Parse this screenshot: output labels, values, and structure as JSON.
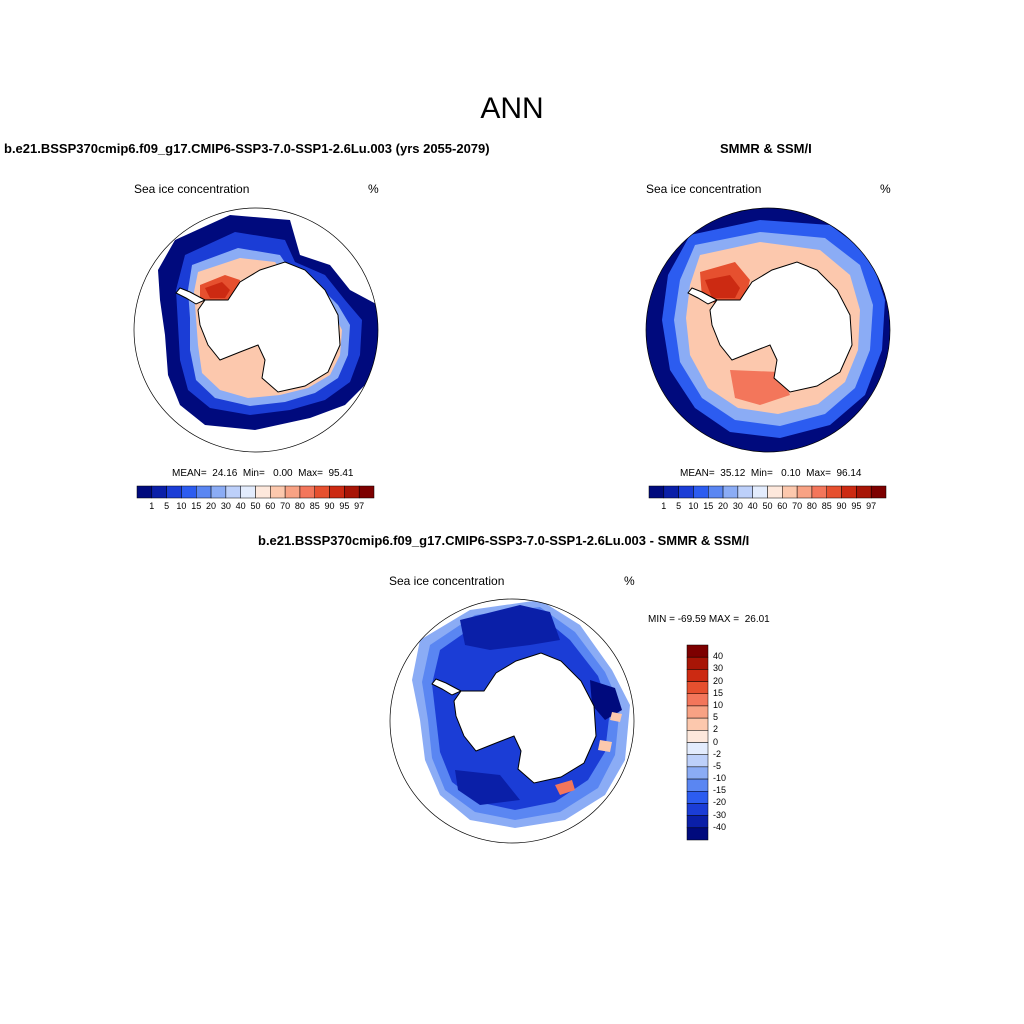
{
  "figure": {
    "title": "ANN"
  },
  "panels": {
    "left": {
      "title": "b.e21.BSSP370cmip6.f09_g17.CMIP6-SSP3-7.0-SSP1-2.6Lu.003 (yrs 2055-2079)",
      "variable": "Sea ice concentration",
      "units": "%",
      "stats": "MEAN=  24.16  Min=   0.00  Max=  95.41"
    },
    "right": {
      "title": "SMMR & SSM/I",
      "variable": "Sea ice concentration",
      "units": "%",
      "stats": "MEAN=  35.12  Min=   0.10  Max=  96.14"
    },
    "diff": {
      "title": "b.e21.BSSP370cmip6.f09_g17.CMIP6-SSP3-7.0-SSP1-2.6Lu.003 - SMMR & SSM/I",
      "variable": "Sea ice concentration",
      "units": "%",
      "stats": "MIN = -69.59 MAX =  26.01"
    }
  },
  "colorbars": {
    "concentration": {
      "labels": [
        "1",
        "5",
        "10",
        "15",
        "20",
        "30",
        "40",
        "50",
        "60",
        "70",
        "80",
        "85",
        "90",
        "95",
        "97"
      ],
      "colors": [
        "#000a7d",
        "#0a1fa8",
        "#1b3dd6",
        "#2c5cf0",
        "#5a86f2",
        "#8bacf5",
        "#bdd0fa",
        "#e3ecfd",
        "#fde8dc",
        "#fcc8ad",
        "#f8a284",
        "#f3765b",
        "#e6502f",
        "#cc2a12",
        "#a81506",
        "#7d0000"
      ]
    },
    "difference": {
      "labels": [
        "40",
        "30",
        "20",
        "15",
        "10",
        "5",
        "2",
        "0",
        "-2",
        "-5",
        "-10",
        "-15",
        "-20",
        "-30",
        "-40"
      ],
      "colors": [
        "#7d0000",
        "#a81506",
        "#cc2a12",
        "#e6502f",
        "#f3765b",
        "#f8a284",
        "#fcc8ad",
        "#fde8dc",
        "#e3ecfd",
        "#bdd0fa",
        "#8bacf5",
        "#5a86f2",
        "#2c5cf0",
        "#1b3dd6",
        "#0a1fa8",
        "#000a7d"
      ]
    }
  }
}
